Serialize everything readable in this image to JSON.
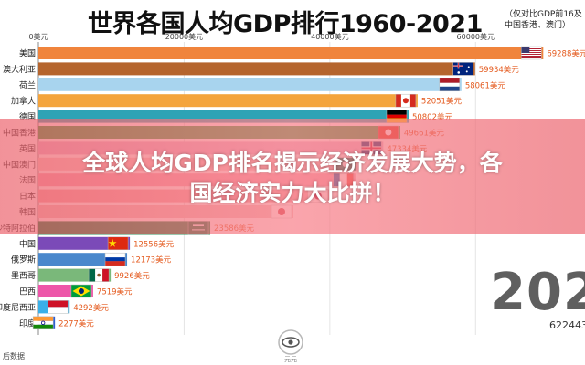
{
  "header": {
    "title": "世界各国人均GDP排行1960-2021",
    "note_line1": "（仅对比GDP前16及",
    "note_line2": "中国香港、澳门）"
  },
  "overlay": {
    "line1": "全球人均GDP排名揭示经济发展大势，各",
    "line2": "国经济实力大比拼！"
  },
  "footer": {
    "year": "202",
    "total": "622443",
    "source": "后数据",
    "logo_caption": "元元"
  },
  "chart_data": {
    "type": "bar",
    "orientation": "horizontal",
    "xlim": [
      0,
      70000
    ],
    "x_ticks": [
      {
        "value": 0,
        "label": "0美元"
      },
      {
        "value": 20000,
        "label": "20000美元"
      },
      {
        "value": 40000,
        "label": "40000美元"
      },
      {
        "value": 60000,
        "label": "60000美元"
      }
    ],
    "categories": [
      "美国",
      "澳大利亚",
      "荷兰",
      "加拿大",
      "德国",
      "中国香港",
      "英国",
      "中国澳门",
      "法国",
      "日本",
      "韩国",
      "沙特阿拉伯",
      "中国",
      "俄罗斯",
      "墨西哥",
      "巴西",
      "印度尼西亚",
      "印度"
    ],
    "values": [
      69288,
      59934,
      58061,
      52051,
      50802,
      49661,
      47334,
      43800,
      43500,
      40000,
      35000,
      23586,
      12556,
      12173,
      9926,
      7519,
      4292,
      2277
    ],
    "value_labels": [
      "69288美元",
      "59934美元",
      "58061美元",
      "52051美元",
      "50802美元",
      "49661美元",
      "47334美元",
      "",
      "",
      "",
      "",
      "23586美元",
      "12556美元",
      "12173美元",
      "9926美元",
      "7519美元",
      "4292美元",
      "2277美元"
    ],
    "colors": [
      "#f0843c",
      "#b5652e",
      "#a8d4ee",
      "#f4a43c",
      "#2ea3b5",
      "#2c9e3c",
      "#e8b7cf",
      "#f8c8c8",
      "#f6a3b2",
      "#f4a6aa",
      "#f0c0c0",
      "#0a7a3a",
      "#7b4ab8",
      "#4a88cc",
      "#7ab87a",
      "#ed56a9",
      "#3ab0e8",
      "#2e5fd0"
    ],
    "flags": [
      "us",
      "au",
      "nl",
      "ca",
      "de",
      "hk",
      "gb",
      "mo",
      "fr",
      "jp",
      "kr",
      "sa",
      "cn",
      "ru",
      "mx",
      "br",
      "id",
      "in"
    ]
  }
}
